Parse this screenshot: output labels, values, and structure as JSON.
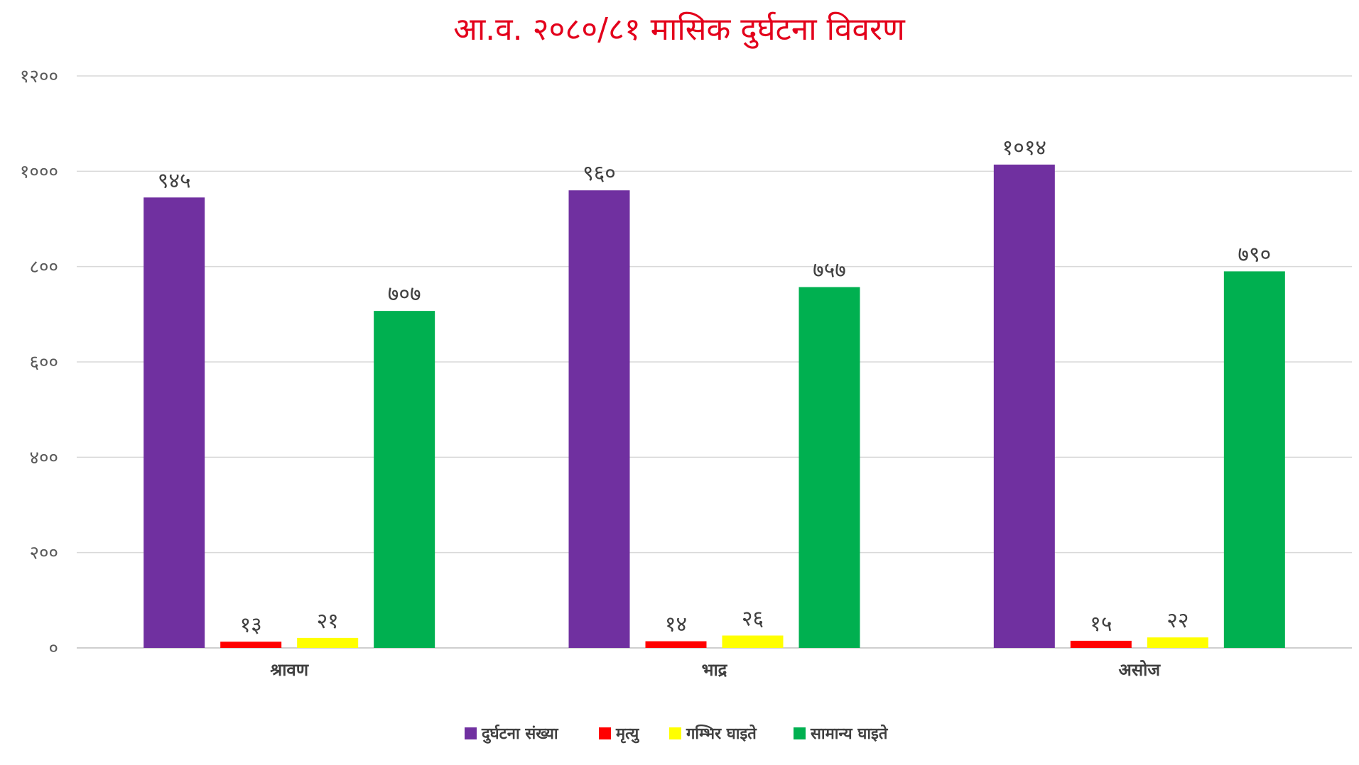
{
  "chart_data": {
    "type": "bar",
    "title": "आ.व. २०८०/८१ मासिक दुर्घटना विवरण",
    "xlabel": "",
    "ylabel": "",
    "ylim": [
      0,
      1200
    ],
    "yticks": [
      0,
      200,
      400,
      600,
      800,
      1000,
      1200
    ],
    "ytick_labels": [
      "०",
      "२००",
      "४००",
      "६००",
      "८००",
      "१०००",
      "१२००"
    ],
    "grid": true,
    "legend_position": "bottom",
    "categories": [
      "श्रावण",
      "भाद्र",
      "असोज"
    ],
    "series": [
      {
        "name": "दुर्घटना संख्या",
        "color": "#7030a0",
        "values": [
          945,
          960,
          1014
        ],
        "labels": [
          "९४५",
          "९६०",
          "१०१४"
        ]
      },
      {
        "name": "मृत्यु",
        "color": "#ff0000",
        "values": [
          13,
          14,
          15
        ],
        "labels": [
          "१३",
          "१४",
          "१५"
        ]
      },
      {
        "name": "गम्भिर घाइते",
        "color": "#ffff00",
        "values": [
          21,
          26,
          22
        ],
        "labels": [
          "२१",
          "२६",
          "२२"
        ]
      },
      {
        "name": "सामान्य घाइते",
        "color": "#00b050",
        "values": [
          707,
          757,
          790
        ],
        "labels": [
          "७०७",
          "७५७",
          "७९०"
        ]
      }
    ]
  }
}
